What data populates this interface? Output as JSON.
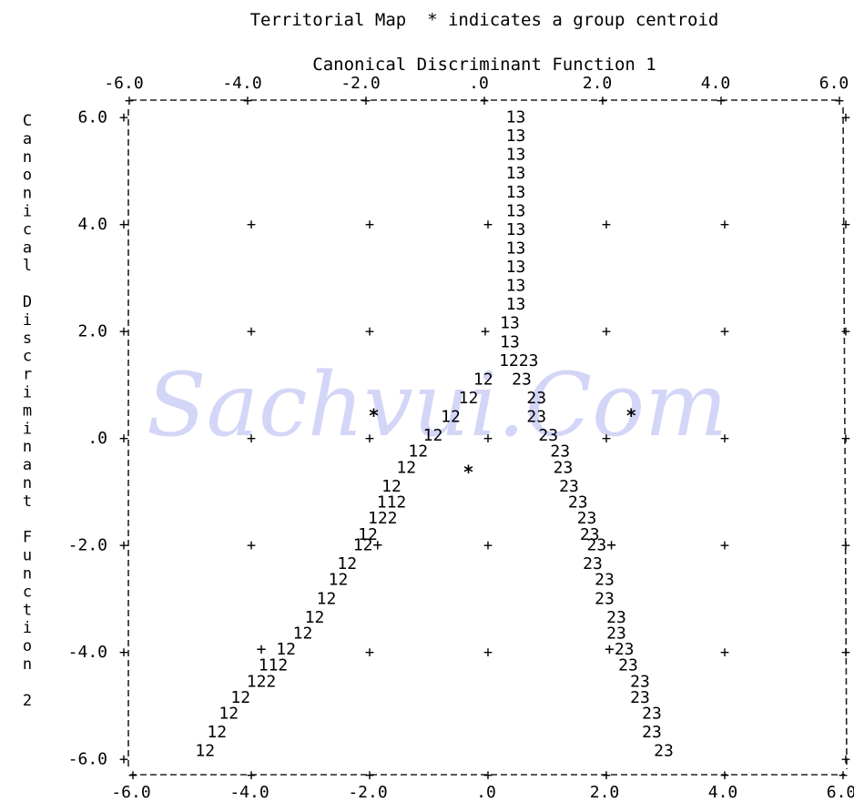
{
  "chart_data": {
    "type": "scatter",
    "title": "Territorial Map  * indicates a group centroid",
    "xlabel": "Canonical Discriminant Function 1",
    "ylabel": "Canonical Discriminant Function 2",
    "xlim": [
      -6.0,
      6.0
    ],
    "ylim": [
      -6.0,
      6.0
    ],
    "x_ticks": [
      "-6.0",
      "-4.0",
      "-2.0",
      ".0",
      "2.0",
      "4.0",
      "6.0"
    ],
    "y_ticks": [
      "6.0",
      "4.0",
      "2.0",
      ".0",
      "-2.0",
      "-4.0",
      "-6.0"
    ],
    "grid_marker": "+",
    "centroid_marker": "*",
    "centroids": [
      {
        "x": -1.9,
        "y": 0.45
      },
      {
        "x": -0.3,
        "y": -0.6
      },
      {
        "x": 2.45,
        "y": 0.45
      }
    ],
    "boundary_glyphs": [
      {
        "text": "13",
        "x": 0.5,
        "y": 6.0
      },
      {
        "text": "13",
        "x": 0.5,
        "y": 5.65
      },
      {
        "text": "13",
        "x": 0.5,
        "y": 5.3
      },
      {
        "text": "13",
        "x": 0.5,
        "y": 4.95
      },
      {
        "text": "13",
        "x": 0.5,
        "y": 4.6
      },
      {
        "text": "13",
        "x": 0.5,
        "y": 4.25
      },
      {
        "text": "13",
        "x": 0.5,
        "y": 3.9
      },
      {
        "text": "13",
        "x": 0.5,
        "y": 3.55
      },
      {
        "text": "13",
        "x": 0.5,
        "y": 3.2
      },
      {
        "text": "13",
        "x": 0.5,
        "y": 2.85
      },
      {
        "text": "13",
        "x": 0.5,
        "y": 2.5
      },
      {
        "text": "13",
        "x": 0.4,
        "y": 2.15
      },
      {
        "text": "13",
        "x": 0.4,
        "y": 1.8
      },
      {
        "text": "1223",
        "x": 0.55,
        "y": 1.45
      },
      {
        "text": "12",
        "x": -0.05,
        "y": 1.1
      },
      {
        "text": "23",
        "x": 0.6,
        "y": 1.1
      },
      {
        "text": "12",
        "x": -0.3,
        "y": 0.75
      },
      {
        "text": "23",
        "x": 0.85,
        "y": 0.75
      },
      {
        "text": "12",
        "x": -0.6,
        "y": 0.4
      },
      {
        "text": "23",
        "x": 0.85,
        "y": 0.4
      },
      {
        "text": "12",
        "x": -0.9,
        "y": 0.05
      },
      {
        "text": "23",
        "x": 1.05,
        "y": 0.05
      },
      {
        "text": "12",
        "x": -1.15,
        "y": -0.25
      },
      {
        "text": "23",
        "x": 1.25,
        "y": -0.25
      },
      {
        "text": "12",
        "x": -1.35,
        "y": -0.55
      },
      {
        "text": "23",
        "x": 1.3,
        "y": -0.55
      },
      {
        "text": "12",
        "x": -1.6,
        "y": -0.9
      },
      {
        "text": "23",
        "x": 1.4,
        "y": -0.9
      },
      {
        "text": "112",
        "x": -1.6,
        "y": -1.2
      },
      {
        "text": "23",
        "x": 1.55,
        "y": -1.2
      },
      {
        "text": "122",
        "x": -1.75,
        "y": -1.5
      },
      {
        "text": "23",
        "x": 1.7,
        "y": -1.5
      },
      {
        "text": "12",
        "x": -2.0,
        "y": -1.8
      },
      {
        "text": "23",
        "x": 1.75,
        "y": -1.8
      },
      {
        "text": "12+",
        "x": -2.0,
        "y": -2.0
      },
      {
        "text": "23+",
        "x": 1.95,
        "y": -2.0
      },
      {
        "text": "12",
        "x": -2.35,
        "y": -2.35
      },
      {
        "text": "23",
        "x": 1.8,
        "y": -2.35
      },
      {
        "text": "12",
        "x": -2.5,
        "y": -2.65
      },
      {
        "text": "23",
        "x": 2.0,
        "y": -2.65
      },
      {
        "text": "12",
        "x": -2.7,
        "y": -3.0
      },
      {
        "text": "23",
        "x": 2.0,
        "y": -3.0
      },
      {
        "text": "12",
        "x": -2.9,
        "y": -3.35
      },
      {
        "text": "23",
        "x": 2.2,
        "y": -3.35
      },
      {
        "text": "12",
        "x": -3.1,
        "y": -3.65
      },
      {
        "text": "23",
        "x": 2.2,
        "y": -3.65
      },
      {
        "text": "+ 12",
        "x": -3.55,
        "y": -3.95
      },
      {
        "text": "+23",
        "x": 2.25,
        "y": -3.95
      },
      {
        "text": "112",
        "x": -3.6,
        "y": -4.25
      },
      {
        "text": "23",
        "x": 2.4,
        "y": -4.25
      },
      {
        "text": "122",
        "x": -3.8,
        "y": -4.55
      },
      {
        "text": "23",
        "x": 2.6,
        "y": -4.55
      },
      {
        "text": "12",
        "x": -4.15,
        "y": -4.85
      },
      {
        "text": "23",
        "x": 2.6,
        "y": -4.85
      },
      {
        "text": "12",
        "x": -4.35,
        "y": -5.15
      },
      {
        "text": "23",
        "x": 2.8,
        "y": -5.15
      },
      {
        "text": "12",
        "x": -4.55,
        "y": -5.5
      },
      {
        "text": "23",
        "x": 2.8,
        "y": -5.5
      },
      {
        "text": "12",
        "x": -4.75,
        "y": -5.85
      },
      {
        "text": "23",
        "x": 3.0,
        "y": -5.85
      }
    ],
    "grid_points_x": [
      -4.0,
      -2.0,
      0.0,
      2.0,
      4.0
    ],
    "grid_points_y": [
      4.0,
      2.0,
      0.0,
      -2.0,
      -4.0
    ]
  },
  "watermark": "Sachvui.Com"
}
